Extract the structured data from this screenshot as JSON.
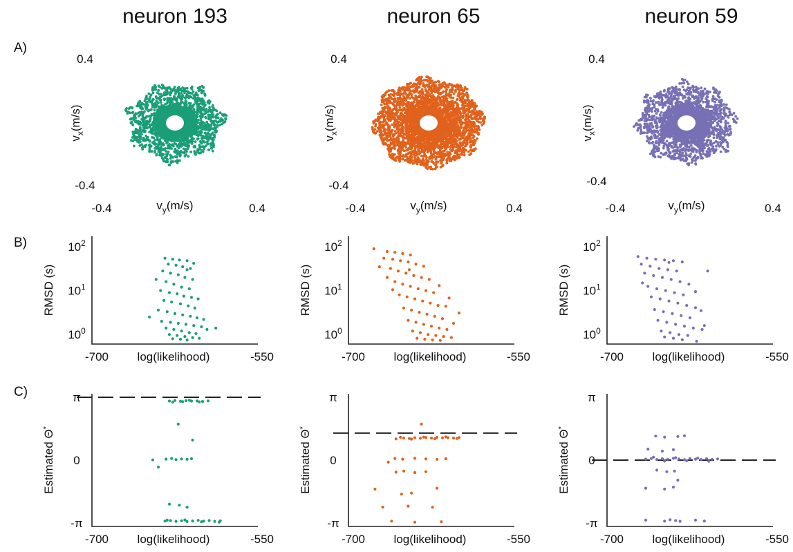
{
  "row_labels": [
    "A)",
    "B)",
    "C)"
  ],
  "colors": {
    "neuron_193": "#1a9e78",
    "neuron_65": "#e0621c",
    "neuron_59": "#7770b4"
  },
  "chart_data": [
    {
      "type": "scatter",
      "row": "A",
      "title": "neuron 193",
      "color": "#1a9e78",
      "xlabel": "v_y(m/s)",
      "ylabel": "v_x(m/s)",
      "xlim": [
        -0.4,
        0.4
      ],
      "ylim": [
        -0.4,
        0.4
      ],
      "xtick_labels": [
        "-0.4",
        "0.4"
      ],
      "ytick_labels": [
        "0.4",
        "-0.4"
      ],
      "grid": false,
      "cloud": {
        "r_inner": 0.045,
        "r_core": 0.14,
        "r_outer": 0.33,
        "n_points": 2600,
        "seed": 193
      }
    },
    {
      "type": "scatter",
      "row": "A",
      "title": "neuron 65",
      "color": "#e0621c",
      "xlabel": "v_y(m/s)",
      "ylabel": "v_x(m/s)",
      "xlim": [
        -0.4,
        0.4
      ],
      "ylim": [
        -0.4,
        0.4
      ],
      "xtick_labels": [
        "-0.4",
        "0.4"
      ],
      "ytick_labels": [
        "0.4",
        "-0.4"
      ],
      "grid": false,
      "cloud": {
        "r_inner": 0.045,
        "r_core": 0.22,
        "r_outer": 0.37,
        "n_points": 3400,
        "seed": 65
      }
    },
    {
      "type": "scatter",
      "row": "A",
      "title": "neuron 59",
      "color": "#7770b4",
      "xlabel": "v_y(m/s)",
      "ylabel": "v_x(m/s)",
      "xlim": [
        -0.4,
        0.4
      ],
      "ylim": [
        -0.4,
        0.4
      ],
      "xtick_labels": [
        "-0.4",
        "0.4"
      ],
      "ytick_labels": [
        "0.4",
        "-0.4"
      ],
      "grid": false,
      "cloud": {
        "r_inner": 0.045,
        "r_core": 0.16,
        "r_outer": 0.34,
        "n_points": 2600,
        "seed": 59
      }
    },
    {
      "type": "scatter",
      "row": "B",
      "color": "#1a9e78",
      "xlabel": "log(likelihood)",
      "ylabel": "RMSD (s)",
      "xlim": [
        -700,
        -550
      ],
      "ylim": [
        0.7,
        150
      ],
      "yscale": "log",
      "xtick_labels": [
        "-700",
        "-550"
      ],
      "ytick_labels": [
        "10^2",
        "10^1",
        "10^0"
      ],
      "points": [
        [
          -634,
          55
        ],
        [
          -627,
          52
        ],
        [
          -621,
          50
        ],
        [
          -614,
          48
        ],
        [
          -631,
          40
        ],
        [
          -624,
          38
        ],
        [
          -618,
          35
        ],
        [
          -611,
          32
        ],
        [
          -636,
          28
        ],
        [
          -629,
          25
        ],
        [
          -622,
          23
        ],
        [
          -616,
          20
        ],
        [
          -609,
          18
        ],
        [
          -633,
          16
        ],
        [
          -626,
          14
        ],
        [
          -619,
          12
        ],
        [
          -612,
          11
        ],
        [
          -638,
          10
        ],
        [
          -630,
          9
        ],
        [
          -623,
          8.5
        ],
        [
          -617,
          7.5
        ],
        [
          -610,
          7
        ],
        [
          -604,
          6.5
        ],
        [
          -635,
          6
        ],
        [
          -628,
          5.5
        ],
        [
          -620,
          5
        ],
        [
          -613,
          4.5
        ],
        [
          -607,
          4
        ],
        [
          -640,
          3.6
        ],
        [
          -632,
          3.3
        ],
        [
          -625,
          3
        ],
        [
          -618,
          2.8
        ],
        [
          -611,
          2.6
        ],
        [
          -605,
          2.4
        ],
        [
          -599,
          2.2
        ],
        [
          -637,
          2
        ],
        [
          -629,
          1.9
        ],
        [
          -622,
          1.8
        ],
        [
          -615,
          1.7
        ],
        [
          -608,
          1.6
        ],
        [
          -601,
          1.5
        ],
        [
          -633,
          1.4
        ],
        [
          -626,
          1.3
        ],
        [
          -619,
          1.2
        ],
        [
          -612,
          1.1
        ],
        [
          -606,
          1.05
        ],
        [
          -630,
          1
        ],
        [
          -623,
          0.95
        ],
        [
          -616,
          0.9
        ],
        [
          -609,
          0.85
        ],
        [
          -603,
          0.82
        ],
        [
          -627,
          0.8
        ],
        [
          -620,
          0.78
        ],
        [
          -614,
          0.75
        ],
        [
          -648,
          2.5
        ],
        [
          -596,
          1.3
        ],
        [
          -588,
          1.4
        ],
        [
          -642,
          18
        ],
        [
          -614,
          30
        ],
        [
          -608,
          42
        ]
      ]
    },
    {
      "type": "scatter",
      "row": "B",
      "color": "#e0621c",
      "xlabel": "log(likelihood)",
      "ylabel": "RMSD (s)",
      "xlim": [
        -700,
        -550
      ],
      "ylim": [
        0.7,
        150
      ],
      "yscale": "log",
      "xtick_labels": [
        "-700",
        "-550"
      ],
      "ytick_labels": [
        "10^2",
        "10^1",
        "10^0"
      ],
      "points": [
        [
          -677,
          90
        ],
        [
          -665,
          78
        ],
        [
          -658,
          75
        ],
        [
          -651,
          70
        ],
        [
          -644,
          65
        ],
        [
          -668,
          55
        ],
        [
          -660,
          52
        ],
        [
          -653,
          48
        ],
        [
          -646,
          45
        ],
        [
          -639,
          40
        ],
        [
          -632,
          36
        ],
        [
          -662,
          32
        ],
        [
          -655,
          28
        ],
        [
          -648,
          25
        ],
        [
          -641,
          22
        ],
        [
          -634,
          20
        ],
        [
          -627,
          18
        ],
        [
          -658,
          16
        ],
        [
          -651,
          14
        ],
        [
          -644,
          12.5
        ],
        [
          -637,
          11
        ],
        [
          -630,
          10
        ],
        [
          -623,
          9
        ],
        [
          -654,
          8
        ],
        [
          -647,
          7.2
        ],
        [
          -640,
          6.5
        ],
        [
          -633,
          5.8
        ],
        [
          -626,
          5.2
        ],
        [
          -619,
          4.6
        ],
        [
          -650,
          4
        ],
        [
          -643,
          3.6
        ],
        [
          -636,
          3.2
        ],
        [
          -629,
          2.9
        ],
        [
          -622,
          2.6
        ],
        [
          -615,
          2.3
        ],
        [
          -646,
          2.1
        ],
        [
          -639,
          1.9
        ],
        [
          -632,
          1.7
        ],
        [
          -625,
          1.55
        ],
        [
          -618,
          1.4
        ],
        [
          -611,
          1.3
        ],
        [
          -642,
          1.2
        ],
        [
          -635,
          1.1
        ],
        [
          -628,
          1
        ],
        [
          -621,
          0.95
        ],
        [
          -614,
          0.9
        ],
        [
          -607,
          0.85
        ],
        [
          -638,
          0.82
        ],
        [
          -631,
          0.78
        ],
        [
          -624,
          0.75
        ],
        [
          -617,
          0.73
        ],
        [
          -672,
          35
        ],
        [
          -665,
          20
        ],
        [
          -612,
          4.4
        ],
        [
          -605,
          1.8
        ],
        [
          -600,
          3.1
        ],
        [
          -660,
          10.5
        ],
        [
          -645,
          30
        ],
        [
          -618,
          13
        ],
        [
          -609,
          6.8
        ]
      ]
    },
    {
      "type": "scatter",
      "row": "B",
      "color": "#7770b4",
      "xlabel": "log(likelihood)",
      "ylabel": "RMSD (s)",
      "xlim": [
        -700,
        -550
      ],
      "ylim": [
        0.7,
        150
      ],
      "yscale": "log",
      "xtick_labels": [
        "-700",
        "-550"
      ],
      "ytick_labels": [
        "10^2",
        "10^1",
        "10^0"
      ],
      "points": [
        [
          -672,
          60
        ],
        [
          -664,
          55
        ],
        [
          -656,
          52
        ],
        [
          -648,
          50
        ],
        [
          -640,
          48
        ],
        [
          -632,
          45
        ],
        [
          -669,
          40
        ],
        [
          -661,
          36
        ],
        [
          -653,
          32
        ],
        [
          -645,
          30
        ],
        [
          -637,
          28
        ],
        [
          -666,
          25
        ],
        [
          -658,
          22
        ],
        [
          -650,
          20
        ],
        [
          -642,
          18
        ],
        [
          -634,
          16
        ],
        [
          -626,
          14
        ],
        [
          -663,
          12.5
        ],
        [
          -655,
          11
        ],
        [
          -647,
          10
        ],
        [
          -639,
          9
        ],
        [
          -631,
          8
        ],
        [
          -660,
          7.2
        ],
        [
          -652,
          6.5
        ],
        [
          -644,
          5.8
        ],
        [
          -636,
          5.2
        ],
        [
          -628,
          4.6
        ],
        [
          -620,
          4.1
        ],
        [
          -657,
          3.7
        ],
        [
          -649,
          3.3
        ],
        [
          -641,
          3
        ],
        [
          -633,
          2.7
        ],
        [
          -625,
          2.4
        ],
        [
          -654,
          2.1
        ],
        [
          -646,
          1.9
        ],
        [
          -638,
          1.7
        ],
        [
          -630,
          1.55
        ],
        [
          -622,
          1.4
        ],
        [
          -614,
          1.3
        ],
        [
          -651,
          1.2
        ],
        [
          -643,
          1.1
        ],
        [
          -635,
          1
        ],
        [
          -627,
          0.95
        ],
        [
          -648,
          0.88
        ],
        [
          -640,
          0.82
        ],
        [
          -632,
          0.76
        ],
        [
          -619,
          0.7
        ],
        [
          -609,
          28
        ],
        [
          -615,
          3.5
        ],
        [
          -612,
          1.6
        ],
        [
          -668,
          15
        ],
        [
          -644,
          44
        ],
        [
          -620,
          9.5
        ]
      ]
    },
    {
      "type": "scatter",
      "row": "C",
      "color": "#1a9e78",
      "xlabel": "log(likelihood)",
      "ylabel": "Estimated Θ*",
      "xlim": [
        -700,
        -550
      ],
      "ylim": [
        -3.1416,
        3.1416
      ],
      "xtick_labels": [
        "-700",
        "-550"
      ],
      "ytick_labels": [
        "π",
        "0",
        "-π"
      ],
      "reference_line": 3.1416,
      "points": [
        [
          -630,
          2.95
        ],
        [
          -625,
          2.98
        ],
        [
          -620,
          2.94
        ],
        [
          -615,
          2.97
        ],
        [
          -610,
          2.95
        ],
        [
          -605,
          2.96
        ],
        [
          -600,
          2.93
        ],
        [
          -595,
          2.96
        ],
        [
          -627,
          2.9
        ],
        [
          -618,
          2.92
        ],
        [
          -612,
          2.99
        ],
        [
          -603,
          2.91
        ],
        [
          -622,
          1.8
        ],
        [
          -609,
          1.0
        ],
        [
          -633,
          0.05
        ],
        [
          -628,
          0.08
        ],
        [
          -624,
          0.02
        ],
        [
          -619,
          0.06
        ],
        [
          -614,
          0.04
        ],
        [
          -610,
          0.07
        ],
        [
          -645,
          0.01
        ],
        [
          -640,
          -0.35
        ],
        [
          -630,
          -2.2
        ],
        [
          -621,
          -2.25
        ],
        [
          -614,
          -2.35
        ],
        [
          -634,
          -3.05
        ],
        [
          -629,
          -3.02
        ],
        [
          -624,
          -3.06
        ],
        [
          -619,
          -3.03
        ],
        [
          -614,
          -3.07
        ],
        [
          -609,
          -3.04
        ],
        [
          -604,
          -3.01
        ],
        [
          -599,
          -3.05
        ],
        [
          -594,
          -3.02
        ],
        [
          -589,
          -3.06
        ],
        [
          -584,
          -3.03
        ],
        [
          -632,
          -3.0
        ],
        [
          -616,
          -2.99
        ],
        [
          -601,
          -3.08
        ],
        [
          -585,
          -3.1
        ]
      ]
    },
    {
      "type": "scatter",
      "row": "C",
      "color": "#e0621c",
      "xlabel": "log(likelihood)",
      "ylabel": "Estimated Θ*",
      "xlim": [
        -700,
        -550
      ],
      "ylim": [
        -3.1416,
        3.1416
      ],
      "xtick_labels": [
        "-700",
        "-550"
      ],
      "ytick_labels": [
        "π",
        "0",
        "-π"
      ],
      "reference_line": 1.35,
      "points": [
        [
          -657,
          1.06
        ],
        [
          -650,
          1.1
        ],
        [
          -645,
          1.08
        ],
        [
          -640,
          1.12
        ],
        [
          -635,
          1.09
        ],
        [
          -630,
          1.13
        ],
        [
          -625,
          1.1
        ],
        [
          -620,
          1.14
        ],
        [
          -615,
          1.11
        ],
        [
          -610,
          1.12
        ],
        [
          -605,
          1.1
        ],
        [
          -600,
          1.13
        ],
        [
          -653,
          1.14
        ],
        [
          -643,
          1.05
        ],
        [
          -632,
          1.15
        ],
        [
          -622,
          1.07
        ],
        [
          -612,
          1.16
        ],
        [
          -602,
          1.08
        ],
        [
          -634,
          1.8
        ],
        [
          -658,
          0.08
        ],
        [
          -651,
          0.05
        ],
        [
          -640,
          0.09
        ],
        [
          -630,
          0.06
        ],
        [
          -620,
          0.04
        ],
        [
          -612,
          0.07
        ],
        [
          -664,
          -0.1
        ],
        [
          -657,
          -0.6
        ],
        [
          -650,
          -0.55
        ],
        [
          -640,
          -0.62
        ],
        [
          -630,
          -0.58
        ],
        [
          -676,
          -1.45
        ],
        [
          -652,
          -1.7
        ],
        [
          -643,
          -1.65
        ],
        [
          -620,
          -1.4
        ],
        [
          -669,
          -2.35
        ],
        [
          -646,
          -2.3
        ],
        [
          -624,
          -2.35
        ],
        [
          -661,
          -3.05
        ],
        [
          -640,
          -3.1
        ],
        [
          -616,
          -3.08
        ]
      ]
    },
    {
      "type": "scatter",
      "row": "C",
      "color": "#7770b4",
      "xlabel": "log(likelihood)",
      "ylabel": "Estimated Θ*",
      "xlim": [
        -700,
        -550
      ],
      "ylim": [
        -3.1416,
        3.1416
      ],
      "xtick_labels": [
        "-700",
        "-550"
      ],
      "ytick_labels": [
        "π",
        "0",
        "-π"
      ],
      "reference_line": 0.0,
      "points": [
        [
          -665,
          0.05
        ],
        [
          -660,
          0.08
        ],
        [
          -655,
          0.03
        ],
        [
          -650,
          0.07
        ],
        [
          -645,
          0.04
        ],
        [
          -640,
          0.09
        ],
        [
          -635,
          0.06
        ],
        [
          -630,
          0.02
        ],
        [
          -625,
          0.08
        ],
        [
          -620,
          0.05
        ],
        [
          -615,
          0.03
        ],
        [
          -610,
          0.07
        ],
        [
          -605,
          0.04
        ],
        [
          -600,
          0.06
        ],
        [
          -658,
          0.15
        ],
        [
          -648,
          -0.05
        ],
        [
          -638,
          0.12
        ],
        [
          -628,
          -0.03
        ],
        [
          -618,
          0.1
        ],
        [
          -608,
          -0.06
        ],
        [
          -656,
          1.2
        ],
        [
          -648,
          1.15
        ],
        [
          -636,
          1.18
        ],
        [
          -630,
          1.22
        ],
        [
          -663,
          0.55
        ],
        [
          -650,
          0.45
        ],
        [
          -640,
          0.52
        ],
        [
          -655,
          -0.5
        ],
        [
          -646,
          -0.58
        ],
        [
          -639,
          -0.55
        ],
        [
          -636,
          -1.0
        ],
        [
          -665,
          -1.4
        ],
        [
          -648,
          -1.45
        ],
        [
          -640,
          -1.35
        ],
        [
          -665,
          -3.0
        ],
        [
          -648,
          -3.05
        ],
        [
          -643,
          -2.98
        ],
        [
          -638,
          -3.02
        ],
        [
          -634,
          -3.06
        ],
        [
          -620,
          -3.0
        ],
        [
          -612,
          -3.04
        ]
      ]
    }
  ]
}
